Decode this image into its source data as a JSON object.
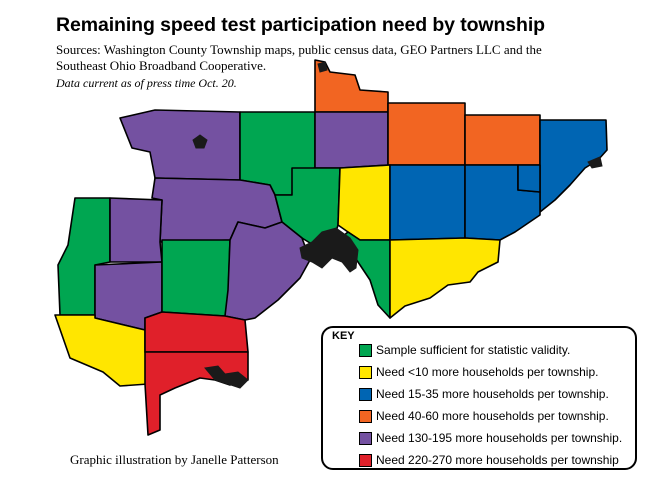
{
  "title": "Remaining speed test participation need by township",
  "sources": "Sources: Washington County Township maps, public census data, GEO Partners LLC and the Southeast Ohio Broadband Cooperative.",
  "dateline": "Data current as of press time Oct. 20.",
  "credit": "Graphic illustration by Janelle Patterson",
  "legend": {
    "title": "KEY",
    "items": [
      {
        "label": "Sample sufficient for statistic validity.",
        "color": "#00a651",
        "icon": "green-square"
      },
      {
        "label": "Need <10 more households per township.",
        "color": "#ffe600",
        "icon": "yellow-square"
      },
      {
        "label": "Need 15-35 more households per township.",
        "color": "#0065b3",
        "icon": "blue-square"
      },
      {
        "label": "Need 40-60 more households per township.",
        "color": "#f26522",
        "icon": "orange-square"
      },
      {
        "label": "Need 130-195 more households per township.",
        "color": "#7451a1",
        "icon": "purple-square"
      },
      {
        "label": "Need 220-270 more households per township",
        "color": "#e0202a",
        "icon": "red-square"
      }
    ]
  },
  "colors": {
    "green": "#00a651",
    "yellow": "#ffe600",
    "blue": "#0065b3",
    "orange": "#f26522",
    "purple": "#7451a1",
    "red": "#e0202a",
    "city": "#1a1a1a"
  }
}
